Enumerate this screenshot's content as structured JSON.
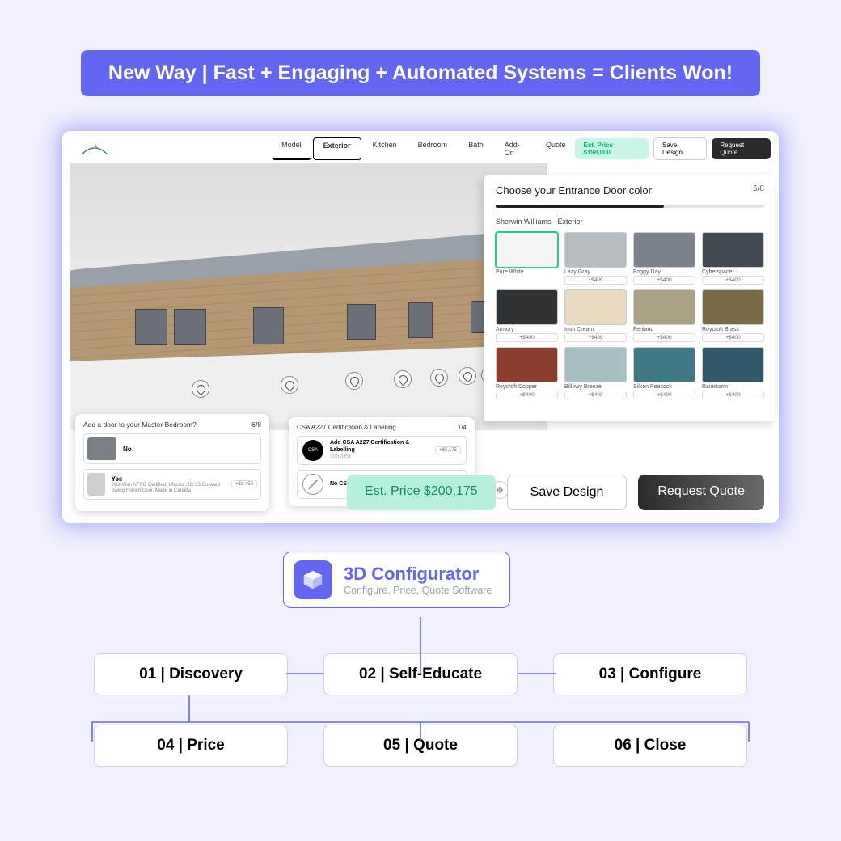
{
  "banner": {
    "text": "New Way | Fast + Engaging + Automated Systems = Clients Won!"
  },
  "app": {
    "nav_tabs": [
      "Model",
      "Exterior",
      "Kitchen",
      "Bedroom",
      "Bath",
      "Add-On",
      "Quote"
    ],
    "active_tab_index": 1,
    "est_price_small": "Est. Price $198,000",
    "save_small": "Save Design",
    "request_small": "Request Quote"
  },
  "color_panel": {
    "title": "Choose your Entrance Door color",
    "step": "5/8",
    "progress_pct": 62.5,
    "brand": "Sherwin Williams - Exterior",
    "swatches": [
      {
        "name": "Pure White",
        "hex": "#f3f3f1",
        "price": "",
        "selected": true
      },
      {
        "name": "Lazy Gray",
        "hex": "#b6bcc0",
        "price": "+$400"
      },
      {
        "name": "Foggy Day",
        "hex": "#7c838a",
        "price": "+$400"
      },
      {
        "name": "Cyberspace",
        "hex": "#434a52",
        "price": "+$400"
      },
      {
        "name": "Armory",
        "hex": "#2f3234",
        "price": "+$400"
      },
      {
        "name": "Irish Cream",
        "hex": "#e7dac1",
        "price": "+$400"
      },
      {
        "name": "Fenland",
        "hex": "#aba284",
        "price": "+$400"
      },
      {
        "name": "Roycroft Brass",
        "hex": "#7b6c47",
        "price": "+$400"
      },
      {
        "name": "Roycroft Copper",
        "hex": "#8a3d2d",
        "price": "+$400"
      },
      {
        "name": "Billowy Breeze",
        "hex": "#a7c0c4",
        "price": "+$400"
      },
      {
        "name": "Silken Peacock",
        "hex": "#3d7883",
        "price": "+$400"
      },
      {
        "name": "Rainstorm",
        "hex": "#2f5869",
        "price": "+$400"
      }
    ]
  },
  "bedroom_popup": {
    "title": "Add a door to your Master Bedroom?",
    "step": "6/8",
    "options": [
      {
        "label": "No",
        "sub": "",
        "price": "",
        "thumb": "#7a7f86"
      },
      {
        "label": "Yes",
        "sub": "Jeld-Wen NFRC Certified, Ufactor .26/.33 Outward Swing French Door. Made in Canada",
        "price": "+$8,450",
        "thumb": "#cfcfcf"
      }
    ]
  },
  "cert_popup": {
    "title": "CSA A227 Certification & Labelling",
    "step": "1/4",
    "options": [
      {
        "label": "Add CSA A227 Certification & Labelling",
        "sub": "soncllea",
        "price": "+$5,175",
        "kind": "badge"
      },
      {
        "label": "No CSA Certification & Labelling",
        "sub": "",
        "price": "",
        "kind": "none"
      }
    ]
  },
  "big_buttons": {
    "est": "Est. Price $200,175",
    "save": "Save Design",
    "request": "Request Quote"
  },
  "configurator_label": {
    "title": "3D Configurator",
    "subtitle": "Configure, Price, Quote Software"
  },
  "flow": {
    "row1": [
      "01 | Discovery",
      "02 | Self-Educate",
      "03 | Configure"
    ],
    "row2": [
      "04 | Price",
      "05 | Quote",
      "06 | Close"
    ]
  },
  "colors": {
    "accent": "#6366f1",
    "page_bg": "#f0f0ff"
  }
}
